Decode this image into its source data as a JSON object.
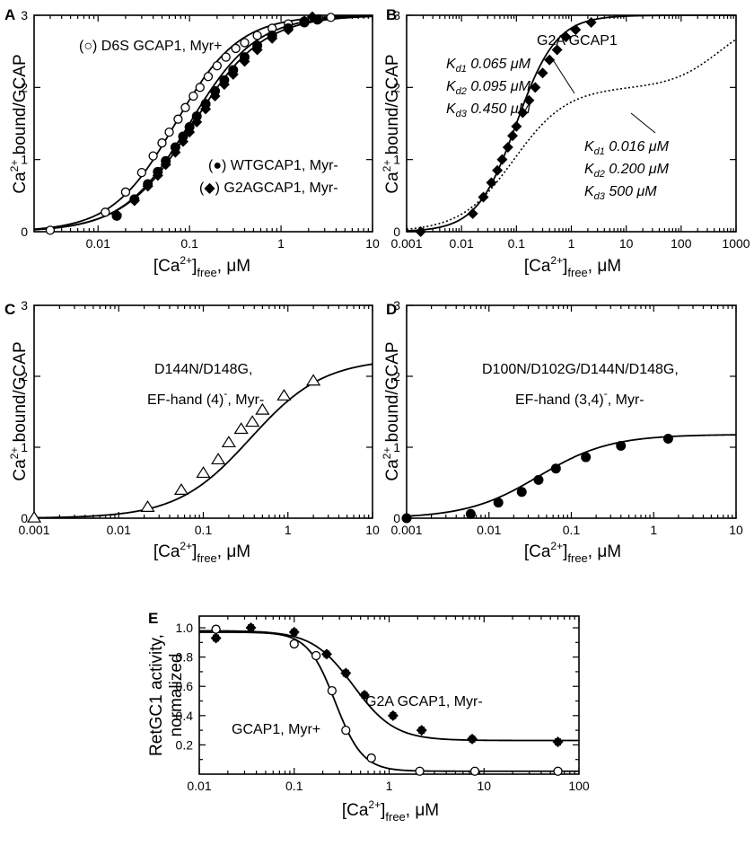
{
  "figure": {
    "axis_label_parts": {
      "x": {
        "pre": "[Ca",
        "sup": "2+",
        "post": "]",
        "sub": "free",
        "unit": ", μM"
      },
      "y": {
        "pre": "Ca",
        "sup": "2+",
        "post": " bound/GCAP"
      },
      "e_y_line1": "RetGC1 activity,",
      "e_y_line2": "normalized"
    }
  },
  "chart_data": [
    {
      "panel": "A",
      "type": "scatter",
      "xscale": "log",
      "xlim": [
        0.002,
        10
      ],
      "ylim": [
        0,
        3
      ],
      "x_ticks": [
        "0.01",
        "0.1",
        "1",
        "10"
      ],
      "y_ticks": [
        "0",
        "1",
        "2",
        "3"
      ],
      "annotations": [
        {
          "text": "(○) D6S GCAP1, Myr+"
        },
        {
          "text": "(●)  WTGCAP1, Myr-"
        },
        {
          "text": "(◆) G2AGCAP1, Myr-"
        }
      ],
      "series": [
        {
          "marker": "circle-open",
          "fit": {
            "max": 3.0,
            "k": 0.07,
            "n": 1.25
          },
          "x": [
            0.003,
            0.012,
            0.02,
            0.03,
            0.04,
            0.05,
            0.06,
            0.075,
            0.09,
            0.11,
            0.13,
            0.16,
            0.2,
            0.25,
            0.32,
            0.4,
            0.55,
            0.8,
            1.2,
            1.8,
            2.6,
            3.5
          ],
          "y": [
            0.02,
            0.27,
            0.55,
            0.82,
            1.05,
            1.23,
            1.38,
            1.56,
            1.72,
            1.88,
            2.0,
            2.15,
            2.3,
            2.42,
            2.54,
            2.62,
            2.72,
            2.82,
            2.88,
            2.92,
            2.95,
            2.97
          ]
        },
        {
          "marker": "circle-filled",
          "fit": {
            "max": 3.0,
            "k": 0.1,
            "n": 1.2
          },
          "x": [
            0.016,
            0.025,
            0.035,
            0.045,
            0.055,
            0.07,
            0.085,
            0.1,
            0.12,
            0.15,
            0.19,
            0.24,
            0.3,
            0.4,
            0.55,
            0.8,
            1.2,
            1.8,
            2.5
          ],
          "y": [
            0.22,
            0.45,
            0.66,
            0.83,
            0.98,
            1.17,
            1.32,
            1.45,
            1.6,
            1.77,
            1.95,
            2.1,
            2.24,
            2.42,
            2.58,
            2.72,
            2.82,
            2.9,
            2.94
          ]
        },
        {
          "marker": "diamond-filled",
          "fit": {
            "max": 3.0,
            "k": 0.11,
            "n": 1.15
          },
          "x": [
            0.016,
            0.025,
            0.035,
            0.045,
            0.055,
            0.07,
            0.085,
            0.1,
            0.12,
            0.15,
            0.19,
            0.24,
            0.3,
            0.4,
            0.55,
            0.8,
            1.2,
            1.8,
            2.2
          ],
          "y": [
            0.24,
            0.43,
            0.63,
            0.78,
            0.93,
            1.1,
            1.25,
            1.38,
            1.52,
            1.7,
            1.88,
            2.04,
            2.18,
            2.36,
            2.52,
            2.68,
            2.8,
            2.92,
            2.98
          ]
        }
      ]
    },
    {
      "panel": "B",
      "type": "scatter",
      "xscale": "log",
      "xlim": [
        0.001,
        1000
      ],
      "ylim": [
        0,
        3
      ],
      "x_ticks": [
        "0.001",
        "0.01",
        "0.1",
        "1",
        "10",
        "100",
        "1000"
      ],
      "y_ticks": [
        "0",
        "1",
        "2",
        "3"
      ],
      "title": "G2A GCAP1",
      "kd_left": [
        {
          "label": "K",
          "sub": "d1",
          "value": " 0.065 μM"
        },
        {
          "label": "K",
          "sub": "d2",
          "value": " 0.095 μM"
        },
        {
          "label": "K",
          "sub": "d3",
          "value": " 0.450 μM"
        }
      ],
      "kd_right": [
        {
          "label": "K",
          "sub": "d1",
          "value": " 0.016 μM"
        },
        {
          "label": "K",
          "sub": "d2",
          "value": " 0.200 μM"
        },
        {
          "label": "K",
          "sub": "d3",
          "value": " 500  μM"
        }
      ],
      "series": [
        {
          "marker": "diamond-filled",
          "fit": {
            "max": 3.0,
            "k": 0.1,
            "n": 1.2
          },
          "x": [
            0.0018,
            0.016,
            0.025,
            0.035,
            0.045,
            0.055,
            0.07,
            0.085,
            0.1,
            0.13,
            0.17,
            0.22,
            0.3,
            0.4,
            0.55,
            0.8,
            1.2,
            2.3
          ],
          "y": [
            0.0,
            0.25,
            0.48,
            0.68,
            0.85,
            1.0,
            1.17,
            1.33,
            1.46,
            1.65,
            1.82,
            2.0,
            2.2,
            2.38,
            2.52,
            2.7,
            2.8,
            2.9
          ]
        }
      ],
      "dotted_curve": {
        "components": [
          {
            "max": 2.0,
            "k": 0.09,
            "n": 0.9
          },
          {
            "max": 1.0,
            "k": 500,
            "n": 1.0
          }
        ]
      }
    },
    {
      "panel": "C",
      "type": "scatter",
      "xscale": "log",
      "xlim": [
        0.001,
        10
      ],
      "ylim": [
        0,
        3
      ],
      "x_ticks": [
        "0.001",
        "0.01",
        "0.1",
        "1",
        "10"
      ],
      "y_ticks": [
        "0",
        "1",
        "2",
        "3"
      ],
      "annotation_line1": "D144N/D148G,",
      "annotation_line2": {
        "pre": "EF-hand (4)",
        "sup": "-",
        "post": ", Myr-"
      },
      "series": [
        {
          "marker": "triangle-open",
          "fit": {
            "max": 2.25,
            "k": 0.36,
            "n": 1.0
          },
          "x": [
            0.001,
            0.022,
            0.055,
            0.1,
            0.15,
            0.2,
            0.28,
            0.38,
            0.5,
            0.9,
            2.0
          ],
          "y": [
            0.0,
            0.15,
            0.39,
            0.63,
            0.82,
            1.06,
            1.25,
            1.35,
            1.52,
            1.72,
            1.93
          ]
        }
      ]
    },
    {
      "panel": "D",
      "type": "scatter",
      "xscale": "log",
      "xlim": [
        0.001,
        10
      ],
      "ylim": [
        0,
        3
      ],
      "x_ticks": [
        "0.001",
        "0.01",
        "0.1",
        "1",
        "10"
      ],
      "y_ticks": [
        "0",
        "1",
        "2",
        "3"
      ],
      "annotation_line1": "D100N/D102G/D144N/D148G,",
      "annotation_line2": {
        "pre": "EF-hand (3,4)",
        "sup": "-",
        "post": ", Myr-"
      },
      "series": [
        {
          "marker": "circle-filled",
          "fit": {
            "max": 1.18,
            "k": 0.04,
            "n": 1.0
          },
          "x": [
            0.001,
            0.006,
            0.013,
            0.025,
            0.04,
            0.065,
            0.15,
            0.4,
            1.5
          ],
          "y": [
            0.0,
            0.06,
            0.22,
            0.37,
            0.54,
            0.7,
            0.86,
            1.02,
            1.12
          ]
        }
      ]
    },
    {
      "panel": "E",
      "type": "scatter",
      "xscale": "log",
      "xlim": [
        0.01,
        100
      ],
      "ylim": [
        0.0,
        1.08
      ],
      "x_ticks": [
        "0.01",
        "0.1",
        "1",
        "10",
        "100"
      ],
      "y_ticks": [
        "0.2",
        "0.4",
        "0.6",
        "0.8",
        "1.0"
      ],
      "labels": [
        {
          "text": "G2A GCAP1, Myr-"
        },
        {
          "text": "GCAP1, Myr+"
        }
      ],
      "series": [
        {
          "marker": "diamond-filled",
          "fit": {
            "top": 0.98,
            "bottom": 0.23,
            "ic50": 0.42,
            "n": 2.0
          },
          "x": [
            0.015,
            0.035,
            0.1,
            0.22,
            0.35,
            0.55,
            1.1,
            2.2,
            7.5,
            60
          ],
          "y": [
            0.93,
            1.0,
            0.97,
            0.82,
            0.69,
            0.54,
            0.4,
            0.3,
            0.24,
            0.22
          ],
          "err": [
            0.02,
            0.02,
            0.02,
            0.02,
            0.02,
            0.02,
            0.02,
            0.02,
            0.02,
            0.02
          ]
        },
        {
          "marker": "circle-open",
          "fit": {
            "top": 0.97,
            "bottom": 0.02,
            "ic50": 0.27,
            "n": 3.0
          },
          "x": [
            0.015,
            0.1,
            0.17,
            0.25,
            0.35,
            0.65,
            2.1,
            8,
            60
          ],
          "y": [
            0.99,
            0.89,
            0.81,
            0.57,
            0.3,
            0.11,
            0.02,
            0.02,
            0.02
          ],
          "err": [
            0.02,
            0.02,
            0.02,
            0.02,
            0.02,
            0.02,
            0.0,
            0.0,
            0.0
          ]
        }
      ]
    }
  ]
}
